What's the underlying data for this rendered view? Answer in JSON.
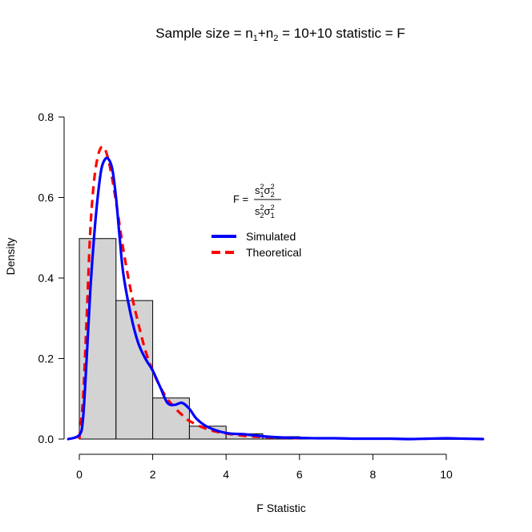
{
  "chart_data": {
    "type": "histogram",
    "title_parts": {
      "prefix": "Sample size = n",
      "sub1": "1",
      "plus1": "+",
      "n2": "n",
      "sub2": "2",
      "mid": " = 10",
      "plus2": "+",
      "suffix": "10 statistic = F"
    },
    "xlabel": "F Statistic",
    "ylabel": "Density",
    "xlim": [
      0,
      11
    ],
    "ylim": [
      0,
      0.8
    ],
    "x_ticks": [
      0,
      2,
      4,
      6,
      8,
      10
    ],
    "y_ticks": [
      0.0,
      0.2,
      0.4,
      0.6,
      0.8
    ],
    "x_tick_labels": [
      "0",
      "2",
      "4",
      "6",
      "8",
      "10"
    ],
    "y_tick_labels": [
      "0.0",
      "0.2",
      "0.4",
      "0.6",
      "0.8"
    ],
    "bins": [
      {
        "x0": 0,
        "x1": 1,
        "density": 0.498
      },
      {
        "x0": 1,
        "x1": 2,
        "density": 0.344
      },
      {
        "x0": 2,
        "x1": 3,
        "density": 0.102
      },
      {
        "x0": 3,
        "x1": 4,
        "density": 0.032
      },
      {
        "x0": 4,
        "x1": 5,
        "density": 0.013
      },
      {
        "x0": 5,
        "x1": 6,
        "density": 0.006
      },
      {
        "x0": 6,
        "x1": 7,
        "density": 0.003
      },
      {
        "x0": 7,
        "x1": 8,
        "density": 0.001
      },
      {
        "x0": 8,
        "x1": 9,
        "density": 0.0005
      },
      {
        "x0": 9,
        "x1": 10,
        "density": 0.0005
      },
      {
        "x0": 10,
        "x1": 11,
        "density": 0.0005
      }
    ],
    "series": [
      {
        "name": "Simulated",
        "color": "#0000ff",
        "style": "solid",
        "x": [
          -0.3,
          0,
          0.1,
          0.2,
          0.3,
          0.4,
          0.5,
          0.6,
          0.7,
          0.8,
          0.9,
          1.0,
          1.1,
          1.2,
          1.4,
          1.6,
          1.8,
          2.0,
          2.2,
          2.4,
          2.6,
          2.8,
          3.0,
          3.2,
          3.5,
          4.0,
          4.5,
          5.0,
          5.5,
          6.0,
          6.5,
          7.0,
          7.5,
          8.0,
          8.5,
          9.0,
          9.5,
          10.0,
          10.5,
          11.0
        ],
        "y": [
          0.0,
          0.01,
          0.05,
          0.2,
          0.37,
          0.5,
          0.6,
          0.67,
          0.695,
          0.695,
          0.67,
          0.6,
          0.5,
          0.41,
          0.31,
          0.24,
          0.2,
          0.17,
          0.13,
          0.09,
          0.085,
          0.09,
          0.075,
          0.05,
          0.03,
          0.015,
          0.012,
          0.007,
          0.004,
          0.003,
          0.002,
          0.002,
          0.001,
          0.001,
          0.001,
          0.0,
          0.001,
          0.002,
          0.001,
          0.0
        ]
      },
      {
        "name": "Theoretical",
        "color": "#ff0000",
        "style": "dashed",
        "x": [
          0,
          0.1,
          0.2,
          0.3,
          0.4,
          0.5,
          0.6,
          0.7,
          0.8,
          0.9,
          1.0,
          1.1,
          1.2,
          1.4,
          1.6,
          1.8,
          2.0,
          2.2,
          2.4,
          2.6,
          2.8,
          3.0,
          3.5,
          4.0,
          4.5,
          5.0,
          6.0
        ],
        "y": [
          0.0,
          0.1,
          0.3,
          0.52,
          0.64,
          0.7,
          0.725,
          0.72,
          0.69,
          0.645,
          0.59,
          0.53,
          0.47,
          0.37,
          0.29,
          0.22,
          0.17,
          0.13,
          0.1,
          0.078,
          0.06,
          0.045,
          0.024,
          0.014,
          0.008,
          0.005,
          0.002
        ]
      }
    ],
    "legend": {
      "placement": "center-right",
      "entries": [
        "Simulated",
        "Theoretical"
      ]
    },
    "annotation": {
      "lhs": "F =",
      "num_s": "s",
      "num_s_sub": "1",
      "num_s_sup": "2",
      "num_sigma": "σ",
      "num_sigma_sub": "2",
      "num_sigma_sup": "2",
      "den_s": "s",
      "den_s_sub": "2",
      "den_s_sup": "2",
      "den_sigma": "σ",
      "den_sigma_sub": "1",
      "den_sigma_sup": "2"
    },
    "grid": false,
    "bar_color": "#d3d3d3",
    "bar_edge_color": "#000000"
  }
}
